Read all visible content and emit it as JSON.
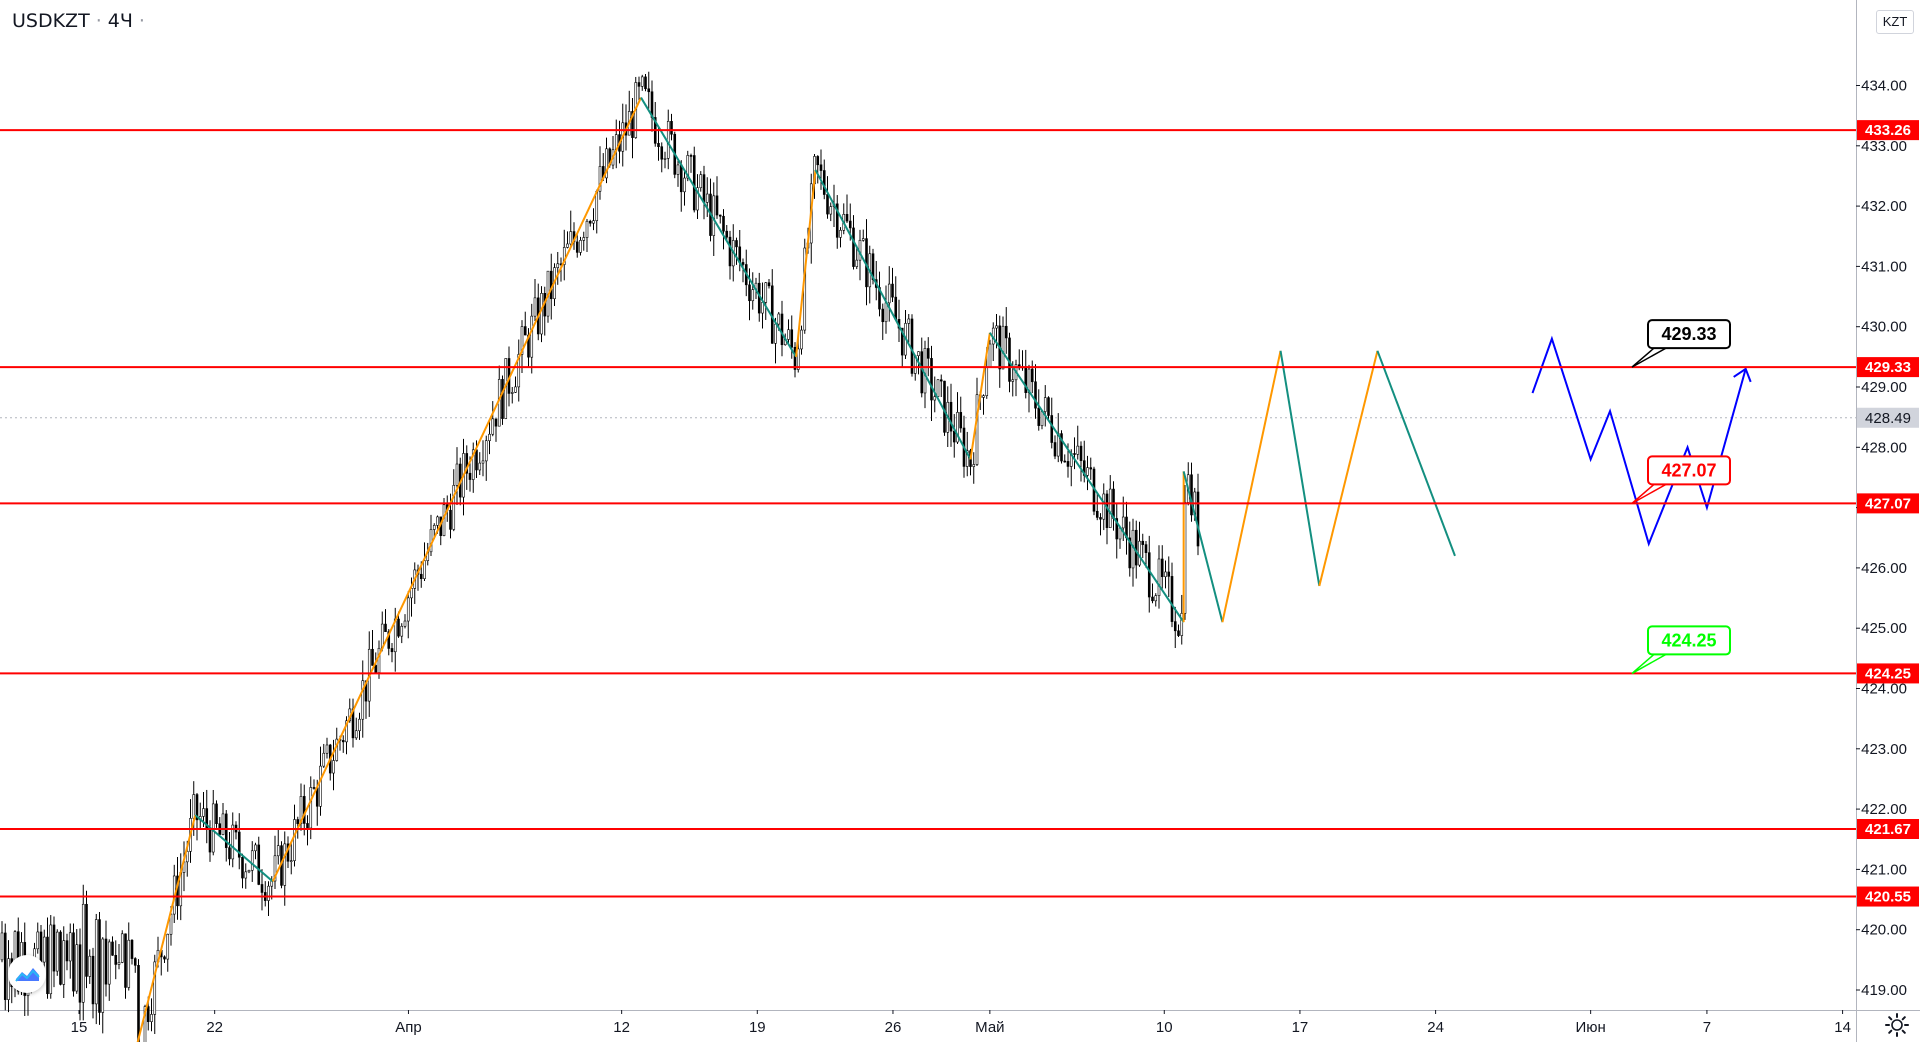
{
  "header": {
    "symbol": "USDKZT",
    "interval": "4Ч"
  },
  "currency_label": "KZT",
  "colors": {
    "level_line": "#ff0000",
    "up_leg": "#ff9800",
    "down_leg": "#138f80",
    "projection": "#0000ff",
    "candle": "#000000",
    "green_label": "#00ff00"
  },
  "chart_data": {
    "type": "candlestick",
    "title": "",
    "x_ticks": [
      "15",
      "22",
      "Апр",
      "12",
      "19",
      "26",
      "Май",
      "10",
      "17",
      "24",
      "Июн",
      "7",
      "14"
    ],
    "y_ticks": [
      "419.00",
      "420.00",
      "421.00",
      "422.00",
      "423.00",
      "424.00",
      "425.00",
      "426.00",
      "427.00",
      "428.00",
      "429.00",
      "430.00",
      "431.00",
      "432.00",
      "433.00",
      "434.00"
    ],
    "ylim": [
      417.9,
      434.8
    ],
    "last_price": 428.49,
    "horizontal_levels": [
      433.26,
      429.33,
      427.07,
      424.25,
      421.67,
      420.55
    ],
    "callouts": [
      {
        "text": "429.33",
        "color": "black"
      },
      {
        "text": "427.07",
        "color": "red"
      },
      {
        "text": "424.25",
        "color": "green"
      }
    ],
    "zigzag": [
      {
        "x": "2021-03-18",
        "y": 418.1
      },
      {
        "x": "2021-03-21",
        "y": 421.9
      },
      {
        "x": "2021-03-25",
        "y": 420.8
      },
      {
        "x": "2021-04-13",
        "y": 433.8
      },
      {
        "x": "2021-04-21",
        "y": 429.5
      },
      {
        "x": "2021-04-22",
        "y": 432.6
      },
      {
        "x": "2021-04-30",
        "y": 427.8
      },
      {
        "x": "2021-05-01",
        "y": 429.9
      },
      {
        "x": "2021-05-11",
        "y": 425.1
      },
      {
        "x": "2021-05-11",
        "y": 427.6
      },
      {
        "x": "2021-05-13",
        "y": 425.1
      },
      {
        "x": "2021-05-16",
        "y": 429.6
      },
      {
        "x": "2021-05-18",
        "y": 425.7
      },
      {
        "x": "2021-05-21",
        "y": 429.6
      },
      {
        "x": "2021-05-25",
        "y": 426.2
      }
    ],
    "projection_path": [
      {
        "x": "2021-05-29",
        "y": 428.9
      },
      {
        "x": "2021-05-30",
        "y": 429.8
      },
      {
        "x": "2021-06-01",
        "y": 427.8
      },
      {
        "x": "2021-06-02",
        "y": 428.6
      },
      {
        "x": "2021-06-04",
        "y": 426.4
      },
      {
        "x": "2021-06-06",
        "y": 428.0
      },
      {
        "x": "2021-06-07",
        "y": 427.0
      },
      {
        "x": "2021-06-09",
        "y": 429.3
      }
    ],
    "projection_arrow_at": {
      "x": "2021-06-09",
      "y": 429.3
    }
  }
}
